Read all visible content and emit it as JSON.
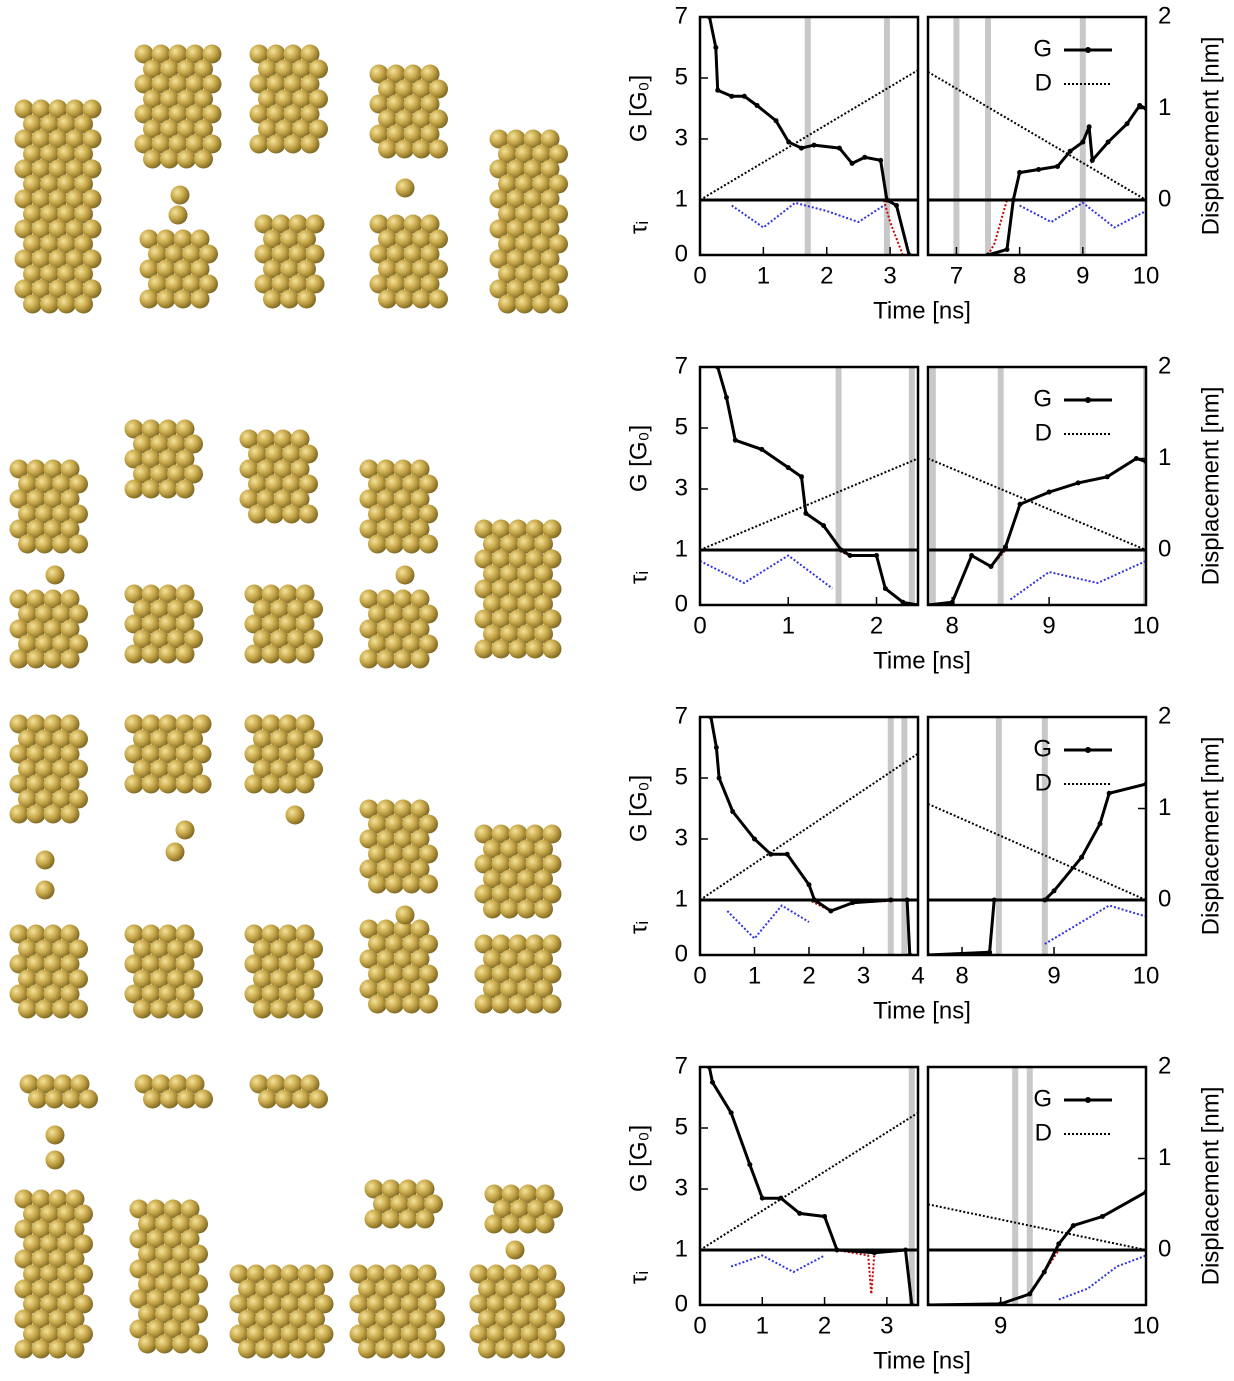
{
  "chart_data": [
    {
      "type": "line",
      "x_label": "Time [ns]",
      "y_label": "G [G₀]",
      "tau_label": "τᵢ",
      "y2_label": "Displacement [nm]",
      "ylim": [
        1,
        7
      ],
      "yticks": [
        1,
        3,
        5,
        7
      ],
      "tau_lim": [
        0,
        1
      ],
      "tau_ticks": [
        0
      ],
      "y2lim": [
        0,
        2
      ],
      "y2ticks": [
        0,
        1,
        2
      ],
      "panels": [
        {
          "xlim": [
            0,
            3.44
          ],
          "xticks": [
            0,
            1,
            2,
            3
          ],
          "events": [
            1.7,
            2.95
          ],
          "series": [
            {
              "color": "#3333dd",
              "dash": "dotted",
              "axis": "tau",
              "x": [
                0.5,
                1.0,
                1.5,
                2.0,
                2.5,
                2.9
              ],
              "values": [
                0.9,
                0.5,
                0.95,
                0.8,
                0.6,
                0.9
              ]
            },
            {
              "color": "#cc0000",
              "dash": "dotted",
              "axis": "tau",
              "x": [
                0,
                2.9,
                3.0,
                3.2
              ],
              "values": [
                1,
                1,
                0.6,
                0
              ]
            },
            {
              "color": "#000000",
              "dash": "dotted",
              "axis": "y2",
              "x": [
                0,
                3.44
              ],
              "values": [
                0,
                1.42
              ]
            },
            {
              "color": "#000000",
              "markers": true,
              "axis": "y",
              "x": [
                0.15,
                0.25,
                0.28,
                0.5,
                0.7,
                0.9,
                1.2,
                1.4,
                1.6,
                1.8,
                2.2,
                2.4,
                2.6,
                2.85,
                2.95,
                3.1,
                3.3
              ],
              "values": [
                7,
                6,
                4.6,
                4.4,
                4.4,
                4.1,
                3.6,
                2.9,
                2.7,
                2.8,
                2.7,
                2.2,
                2.4,
                2.3,
                1.0,
                0.9,
                0
              ]
            }
          ]
        },
        {
          "xlim": [
            6.55,
            10
          ],
          "xticks": [
            7,
            8,
            9,
            10
          ],
          "events": [
            7.0,
            7.5,
            9.0
          ],
          "series": [
            {
              "color": "#3333dd",
              "dash": "dotted",
              "axis": "tau",
              "x": [
                8,
                8.5,
                9,
                9.5,
                10
              ],
              "values": [
                0.9,
                0.6,
                0.95,
                0.5,
                0.8
              ]
            },
            {
              "color": "#cc0000",
              "dash": "dotted",
              "axis": "tau",
              "x": [
                7.5,
                7.6,
                7.8,
                10
              ],
              "values": [
                0,
                0.2,
                1,
                1
              ]
            },
            {
              "name": "G",
              "color": "#000000",
              "markers": true,
              "axis": "y",
              "x": [
                7.5,
                7.8,
                7.9,
                8.0,
                8.3,
                8.6,
                8.8,
                9.0,
                9.1,
                9.15,
                9.4,
                9.7,
                9.9,
                10
              ],
              "values": [
                0,
                0.1,
                1.0,
                1.9,
                2.0,
                2.1,
                2.6,
                2.9,
                3.4,
                2.3,
                2.9,
                3.5,
                4.1,
                4.0
              ]
            },
            {
              "name": "D",
              "color": "#000000",
              "dash": "dotted",
              "axis": "y2",
              "x": [
                6.55,
                10
              ],
              "values": [
                1.4,
                0
              ]
            }
          ]
        }
      ]
    },
    {
      "type": "line",
      "x_label": "Time [ns]",
      "y_label": "G [G₀]",
      "tau_label": "τᵢ",
      "y2_label": "Displacement [nm]",
      "ylim": [
        1,
        7
      ],
      "yticks": [
        1,
        3,
        5,
        7
      ],
      "tau_lim": [
        0,
        1
      ],
      "tau_ticks": [
        0
      ],
      "y2lim": [
        0,
        2
      ],
      "y2ticks": [
        0,
        1,
        2
      ],
      "panels": [
        {
          "xlim": [
            0,
            2.47
          ],
          "xticks": [
            0,
            1,
            2
          ],
          "events": [
            1.57,
            2.4
          ],
          "series": [
            {
              "color": "#3333dd",
              "dash": "dotted",
              "axis": "tau",
              "x": [
                0,
                0.5,
                1.0,
                1.5
              ],
              "values": [
                0.8,
                0.4,
                0.9,
                0.3
              ]
            },
            {
              "color": "#cc0000",
              "dash": "dotted",
              "axis": "tau",
              "x": [
                0,
                1.55,
                1.7,
                2.0,
                2.1,
                2.3,
                2.47
              ],
              "values": [
                1,
                1,
                0.9,
                0.9,
                0.3,
                0.05,
                0
              ]
            },
            {
              "color": "#000000",
              "dash": "dotted",
              "axis": "y2",
              "x": [
                0,
                2.47
              ],
              "values": [
                0,
                1.0
              ]
            },
            {
              "color": "#000000",
              "markers": true,
              "axis": "y",
              "x": [
                0.2,
                0.3,
                0.4,
                0.7,
                1.0,
                1.15,
                1.2,
                1.4,
                1.6,
                1.7,
                2.0,
                2.1,
                2.3,
                2.47
              ],
              "values": [
                7,
                6,
                4.6,
                4.3,
                3.7,
                3.4,
                2.2,
                1.8,
                1.0,
                0.9,
                0.9,
                0.3,
                0.05,
                0
              ]
            }
          ]
        },
        {
          "xlim": [
            7.75,
            10
          ],
          "xticks": [
            8,
            9,
            10
          ],
          "events": [
            7.8,
            8.5,
            10
          ],
          "series": [
            {
              "color": "#3333dd",
              "dash": "dotted",
              "axis": "tau",
              "x": [
                8.6,
                9.0,
                9.5,
                10
              ],
              "values": [
                0.1,
                0.6,
                0.4,
                0.8
              ]
            },
            {
              "color": "#cc0000",
              "dash": "dotted",
              "axis": "tau",
              "x": [
                7.75,
                8.0,
                8.2,
                8.4,
                8.55,
                10
              ],
              "values": [
                0,
                0.05,
                0.9,
                0.7,
                1,
                1
              ]
            },
            {
              "name": "G",
              "color": "#000000",
              "markers": true,
              "axis": "y",
              "x": [
                7.75,
                8.0,
                8.2,
                8.4,
                8.55,
                8.7,
                9.0,
                9.3,
                9.6,
                9.9,
                10
              ],
              "values": [
                0,
                0.05,
                0.9,
                0.7,
                1.1,
                2.5,
                2.9,
                3.2,
                3.4,
                4.0,
                3.9
              ]
            },
            {
              "name": "D",
              "color": "#000000",
              "dash": "dotted",
              "axis": "y2",
              "x": [
                7.75,
                10
              ],
              "values": [
                1.0,
                0
              ]
            }
          ]
        }
      ]
    },
    {
      "type": "line",
      "x_label": "Time [ns]",
      "y_label": "G [G₀]",
      "tau_label": "τᵢ",
      "y2_label": "Displacement [nm]",
      "ylim": [
        1,
        7
      ],
      "yticks": [
        1,
        3,
        5,
        7
      ],
      "tau_lim": [
        0,
        1
      ],
      "tau_ticks": [
        0
      ],
      "y2lim": [
        0,
        2
      ],
      "y2ticks": [
        0,
        1,
        2
      ],
      "panels": [
        {
          "xlim": [
            0,
            4
          ],
          "xticks": [
            0,
            1,
            2,
            3,
            4
          ],
          "events": [
            3.5,
            3.75
          ],
          "series": [
            {
              "color": "#3333dd",
              "dash": "dotted",
              "axis": "tau",
              "x": [
                0.5,
                1.0,
                1.5,
                2.0
              ],
              "values": [
                0.8,
                0.3,
                0.9,
                0.6
              ]
            },
            {
              "color": "#cc0000",
              "dash": "dotted",
              "axis": "tau",
              "x": [
                0,
                2.0,
                2.4,
                2.8,
                3.8,
                3.85
              ],
              "values": [
                1,
                1,
                0.8,
                0.95,
                1,
                0
              ]
            },
            {
              "color": "#000000",
              "dash": "dotted",
              "axis": "y2",
              "x": [
                0,
                4
              ],
              "values": [
                0,
                1.6
              ]
            },
            {
              "color": "#000000",
              "markers": true,
              "axis": "y",
              "x": [
                0.2,
                0.3,
                0.35,
                0.6,
                1.0,
                1.3,
                1.6,
                2.0,
                2.1,
                2.4,
                2.8,
                3.5,
                3.8,
                3.85
              ],
              "values": [
                7,
                6,
                5,
                3.9,
                3.0,
                2.5,
                2.5,
                1.5,
                1.0,
                0.8,
                0.95,
                1.0,
                1.0,
                0
              ]
            }
          ]
        },
        {
          "xlim": [
            7.63,
            10
          ],
          "xticks": [
            8,
            9,
            10
          ],
          "events": [
            8.4,
            8.9
          ],
          "series": [
            {
              "color": "#3333dd",
              "dash": "dotted",
              "axis": "tau",
              "x": [
                8.9,
                9.3,
                9.6,
                10
              ],
              "values": [
                0.2,
                0.6,
                0.9,
                0.7
              ]
            },
            {
              "color": "#cc0000",
              "dash": "dotted",
              "axis": "tau",
              "x": [
                7.63,
                8.3,
                8.35,
                10
              ],
              "values": [
                0,
                0.05,
                1,
                1
              ]
            },
            {
              "name": "G",
              "color": "#000000",
              "markers": true,
              "axis": "y",
              "x": [
                7.63,
                8.3,
                8.35,
                8.9,
                9.0,
                9.3,
                9.5,
                9.6,
                10
              ],
              "values": [
                0,
                0.05,
                1.0,
                1.0,
                1.3,
                2.4,
                3.5,
                4.5,
                4.8
              ]
            },
            {
              "name": "D",
              "color": "#000000",
              "dash": "dotted",
              "axis": "y2",
              "x": [
                7.63,
                10
              ],
              "values": [
                1.05,
                0
              ]
            }
          ]
        }
      ]
    },
    {
      "type": "line",
      "x_label": "Time [ns]",
      "y_label": "G [G₀]",
      "tau_label": "τᵢ",
      "y2_label": "Displacement [nm]",
      "ylim": [
        1,
        7
      ],
      "yticks": [
        1,
        3,
        5,
        7
      ],
      "tau_lim": [
        0,
        1
      ],
      "tau_ticks": [
        0
      ],
      "y2lim": [
        0,
        2
      ],
      "y2ticks": [
        0,
        1,
        2
      ],
      "panels": [
        {
          "xlim": [
            0,
            3.5
          ],
          "xticks": [
            0,
            1,
            2,
            3
          ],
          "events": [
            3.4
          ],
          "series": [
            {
              "color": "#3333dd",
              "dash": "dotted",
              "axis": "tau",
              "x": [
                0.5,
                1.0,
                1.5,
                2.0
              ],
              "values": [
                0.7,
                0.9,
                0.6,
                0.9
              ]
            },
            {
              "color": "#cc0000",
              "dash": "dotted",
              "axis": "tau",
              "x": [
                0,
                2.2,
                2.7,
                2.75,
                2.8,
                3.3
              ],
              "values": [
                1,
                1,
                0.9,
                0.2,
                0.95,
                1
              ]
            },
            {
              "color": "#000000",
              "dash": "dotted",
              "axis": "y2",
              "x": [
                0,
                3.5
              ],
              "values": [
                0,
                1.5
              ]
            },
            {
              "color": "#000000",
              "markers": true,
              "axis": "y",
              "x": [
                0.15,
                0.2,
                0.5,
                0.8,
                1.0,
                1.3,
                1.6,
                2.0,
                2.2,
                2.8,
                3.3,
                3.4
              ],
              "values": [
                7,
                6.5,
                5.5,
                3.8,
                2.7,
                2.7,
                2.2,
                2.1,
                1.0,
                0.95,
                1.0,
                0
              ]
            }
          ]
        },
        {
          "xlim": [
            8.5,
            10
          ],
          "xticks": [
            9,
            10
          ],
          "events": [
            9.1,
            9.2
          ],
          "series": [
            {
              "color": "#3333dd",
              "dash": "dotted",
              "axis": "tau",
              "x": [
                9.4,
                9.6,
                9.8,
                10
              ],
              "values": [
                0.1,
                0.3,
                0.7,
                0.9
              ]
            },
            {
              "color": "#cc0000",
              "dash": "dotted",
              "axis": "tau",
              "x": [
                8.5,
                9.0,
                9.2,
                9.3,
                9.4,
                10
              ],
              "values": [
                0,
                0.02,
                0.2,
                0.6,
                1,
                1
              ]
            },
            {
              "name": "G",
              "color": "#000000",
              "markers": true,
              "axis": "y",
              "x": [
                8.5,
                9.0,
                9.2,
                9.3,
                9.4,
                9.5,
                9.7,
                10
              ],
              "values": [
                0,
                0.02,
                0.2,
                0.6,
                1.2,
                1.8,
                2.1,
                2.9
              ]
            },
            {
              "name": "D",
              "color": "#000000",
              "dash": "dotted",
              "axis": "y2",
              "x": [
                8.5,
                10
              ],
              "values": [
                0.5,
                0
              ]
            }
          ]
        }
      ]
    }
  ]
}
